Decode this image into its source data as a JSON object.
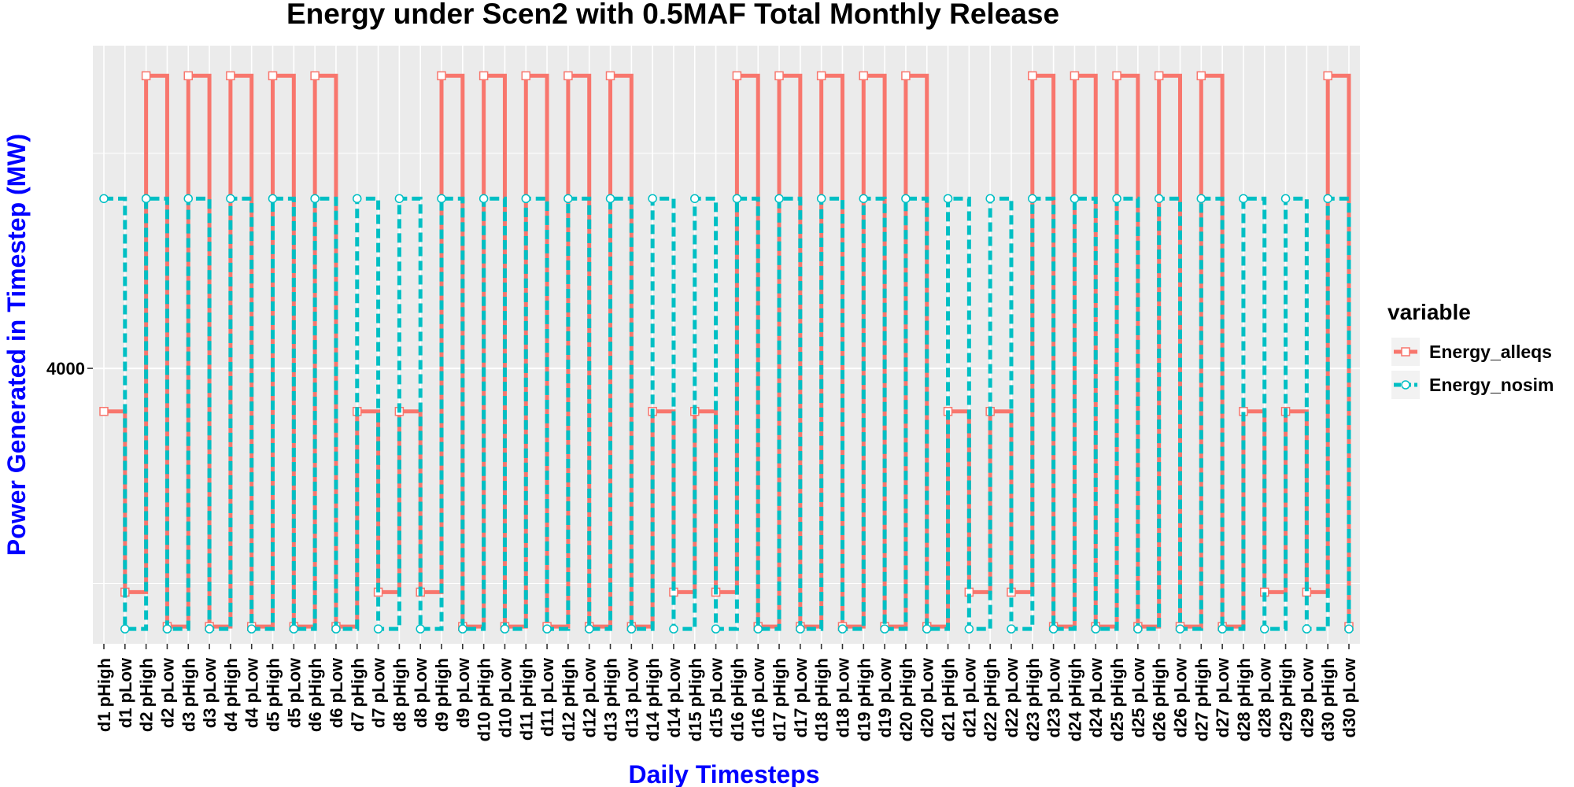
{
  "chart_data": {
    "type": "line",
    "title": "Energy under Scen2 with 0.5MAF Total Monthly Release",
    "xlabel": "Daily Timesteps",
    "ylabel": "Power Generated in Timestep (MW)",
    "xlabel_color": "#0000FF",
    "ylabel_color": "#0000FF",
    "y_ticks": [
      4000
    ],
    "y_tick_labels": [
      "4000"
    ],
    "ylim": [
      3360,
      4750
    ],
    "grid": true,
    "step": true,
    "legend": {
      "title": "variable",
      "position": "right"
    },
    "categories": [
      "d1 pHigh",
      "d1 pLow",
      "d2 pHigh",
      "d2 pLow",
      "d3 pHigh",
      "d3 pLow",
      "d4 pHigh",
      "d4 pLow",
      "d5 pHigh",
      "d5 pLow",
      "d6 pHigh",
      "d6 pLow",
      "d7 pHigh",
      "d7 pLow",
      "d8 pHigh",
      "d8 pLow",
      "d9 pHigh",
      "d9 pLow",
      "d10 pHigh",
      "d10 pLow",
      "d11 pHigh",
      "d11 pLow",
      "d12 pHigh",
      "d12 pLow",
      "d13 pHigh",
      "d13 pLow",
      "d14 pHigh",
      "d14 pLow",
      "d15 pHigh",
      "d15 pLow",
      "d16 pHigh",
      "d16 pLow",
      "d17 pHigh",
      "d17 pLow",
      "d18 pHigh",
      "d18 pLow",
      "d19 pHigh",
      "d19 pLow",
      "d20 pHigh",
      "d20 pLow",
      "d21 pHigh",
      "d21 pLow",
      "d22 pHigh",
      "d22 pLow",
      "d23 pHigh",
      "d23 pLow",
      "d24 pHigh",
      "d24 pLow",
      "d25 pHigh",
      "d25 pLow",
      "d26 pHigh",
      "d26 pLow",
      "d27 pHigh",
      "d27 pLow",
      "d28 pHigh",
      "d28 pLow",
      "d29 pHigh",
      "d29 pLow",
      "d30 pHigh",
      "d30 pLow"
    ],
    "series": [
      {
        "name": "Energy_alleqs",
        "color": "#F8766D",
        "line": "solid",
        "marker": "square",
        "values": [
          3900,
          3480,
          4680,
          3400,
          4680,
          3400,
          4680,
          3400,
          4680,
          3400,
          4680,
          3400,
          3900,
          3480,
          3900,
          3480,
          4680,
          3400,
          4680,
          3400,
          4680,
          3400,
          4680,
          3400,
          4680,
          3400,
          3900,
          3480,
          3900,
          3480,
          4680,
          3400,
          4680,
          3400,
          4680,
          3400,
          4680,
          3400,
          4680,
          3400,
          3900,
          3480,
          3900,
          3480,
          4680,
          3400,
          4680,
          3400,
          4680,
          3400,
          4680,
          3400,
          4680,
          3400,
          3900,
          3480,
          3900,
          3480,
          4680,
          3400
        ]
      },
      {
        "name": "Energy_nosim",
        "color": "#00BFC4",
        "line": "dashed",
        "marker": "circle",
        "values": [
          4400,
          3400,
          4400,
          3400,
          4400,
          3400,
          4400,
          3400,
          4400,
          3400,
          4400,
          3400,
          4400,
          3400,
          4400,
          3400,
          4400,
          3400,
          4400,
          3400,
          4400,
          3400,
          4400,
          3400,
          4400,
          3400,
          4400,
          3400,
          4400,
          3400,
          4400,
          3400,
          4400,
          3400,
          4400,
          3400,
          4400,
          3400,
          4400,
          3400,
          4400,
          3400,
          4400,
          3400,
          4400,
          3400,
          4400,
          3400,
          4400,
          3400,
          4400,
          3400,
          4400,
          3400,
          4400,
          3400,
          4400,
          3400,
          4400,
          3400
        ]
      }
    ]
  }
}
